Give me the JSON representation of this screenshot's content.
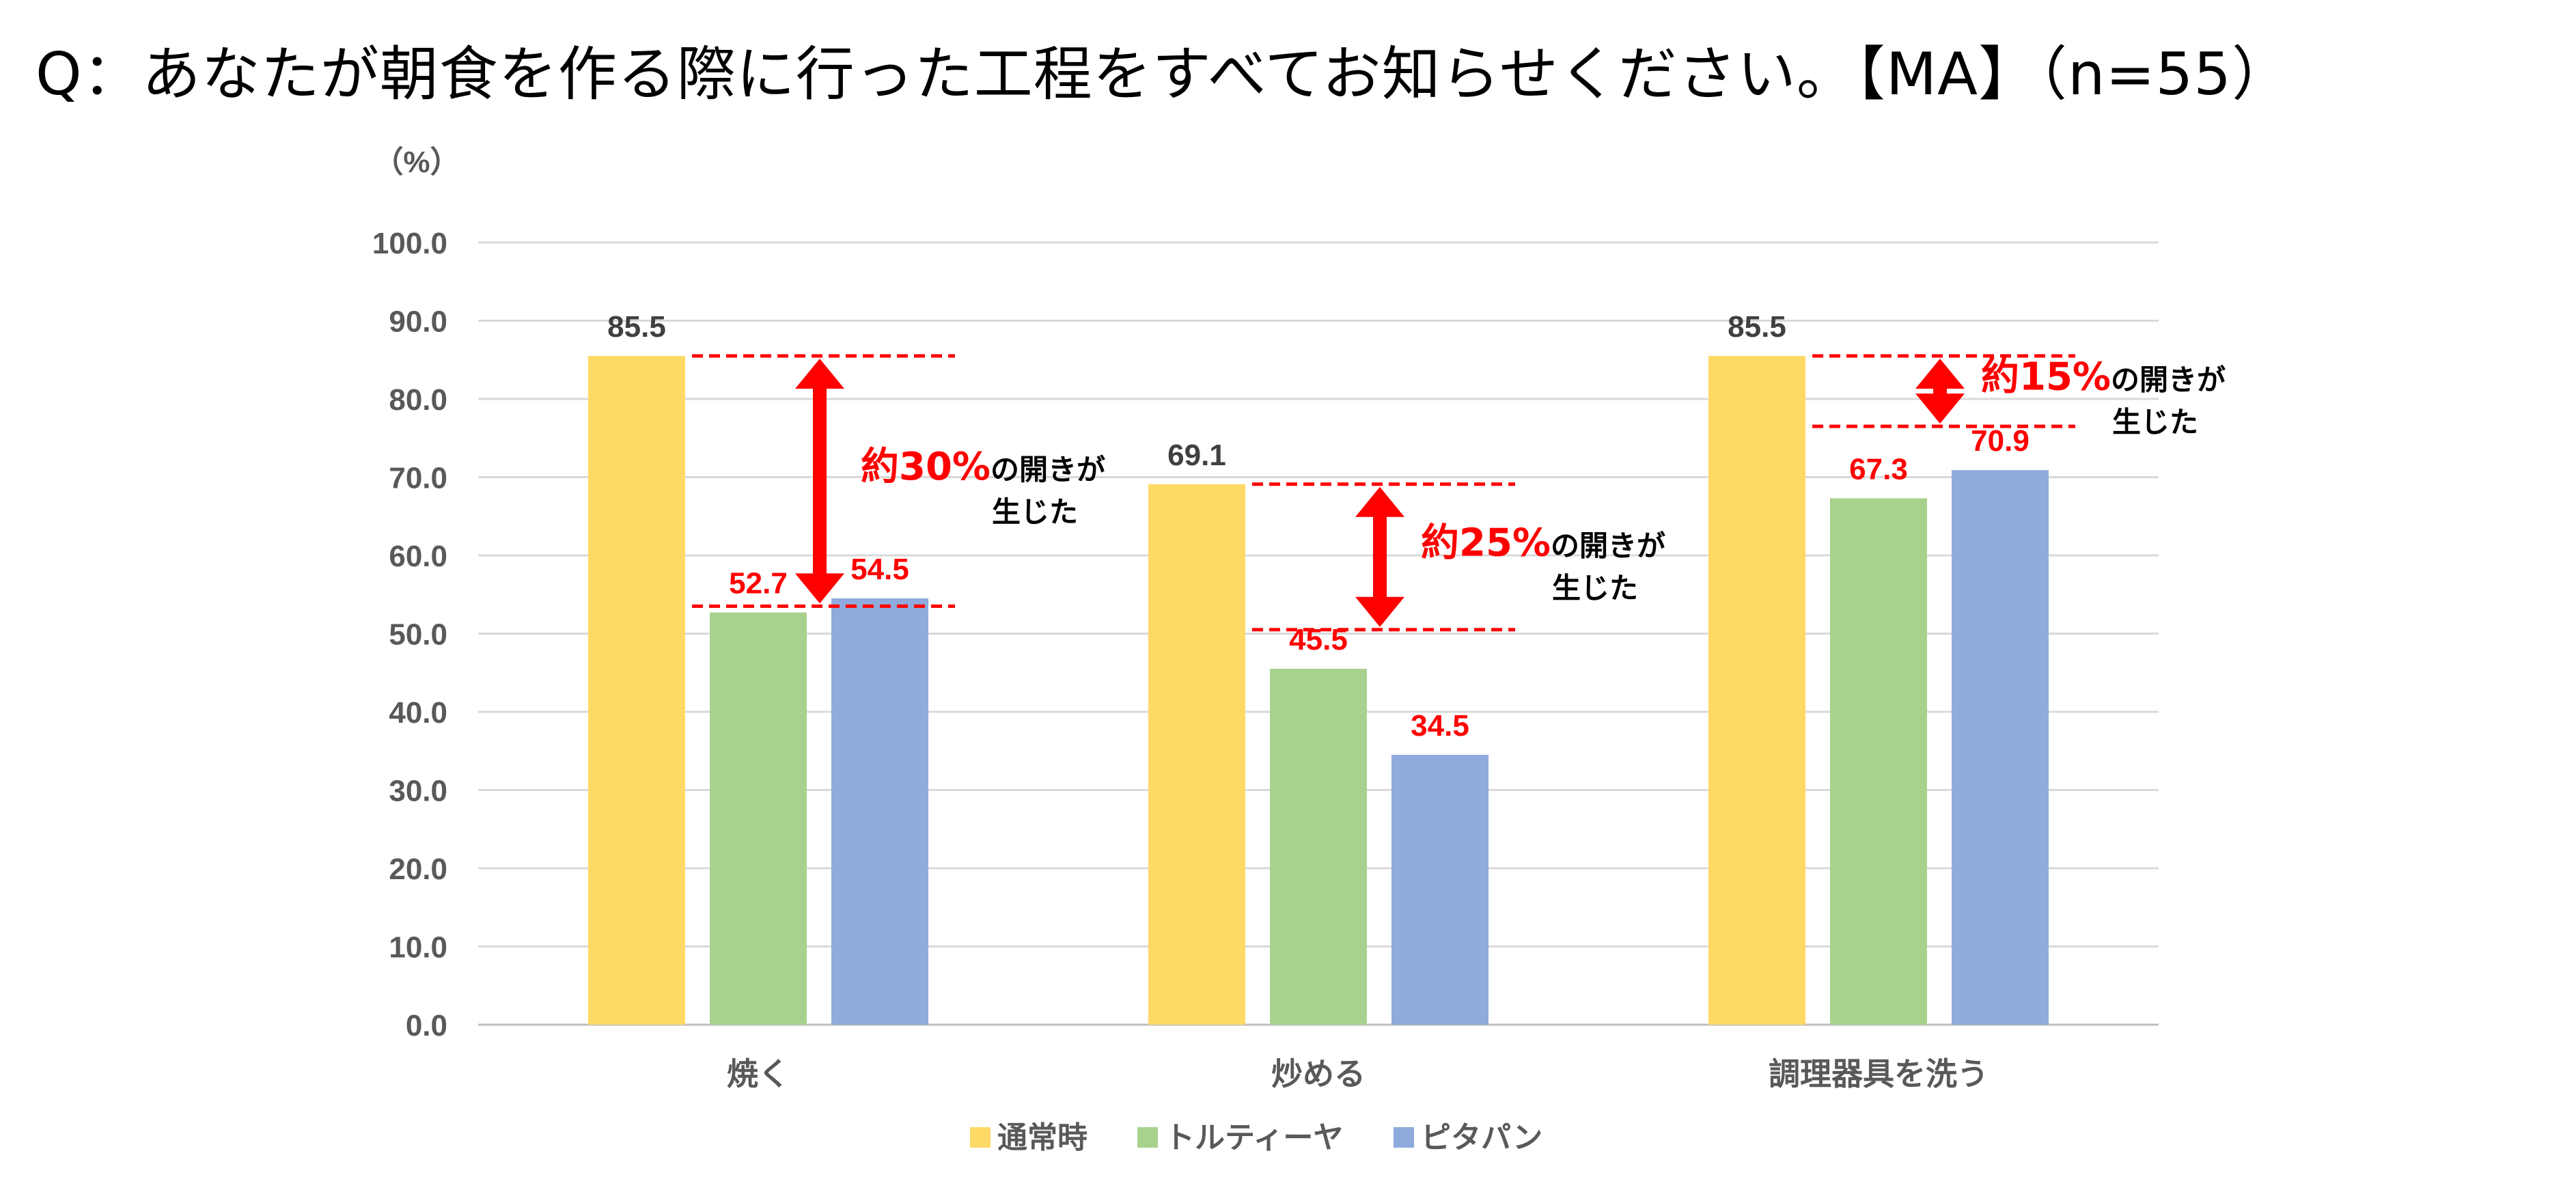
{
  "question": "Q：あなたが朝食を作る際に行った工程をすべてお知らせください。【MA】（n=55）",
  "chart_data": {
    "type": "bar",
    "unit_label": "（%）",
    "ylim": [
      0,
      100
    ],
    "yticks": [
      "0.0",
      "10.0",
      "20.0",
      "30.0",
      "40.0",
      "50.0",
      "60.0",
      "70.0",
      "80.0",
      "90.0",
      "100.0"
    ],
    "categories": [
      "焼く",
      "炒める",
      "調理器具を洗う"
    ],
    "series": [
      {
        "name": "通常時",
        "color": "#FFD966",
        "label_color": "#404040",
        "values": [
          85.5,
          69.1,
          85.5
        ],
        "labels": [
          "85.5",
          "69.1",
          "85.5"
        ]
      },
      {
        "name": "トルティーヤ",
        "color": "#A9D18E",
        "label_color": "#FF0000",
        "values": [
          52.7,
          45.5,
          67.3
        ],
        "labels": [
          "52.7",
          "45.5",
          "67.3"
        ]
      },
      {
        "name": "ピタパン",
        "color": "#8FAADC",
        "label_color": "#FF0000",
        "values": [
          54.5,
          34.5,
          70.9
        ],
        "labels": [
          "54.5",
          "34.5",
          "70.9"
        ]
      }
    ],
    "annotations": [
      {
        "category": 0,
        "top": 85.5,
        "bottom": 53.5,
        "main": "約30%",
        "suffix": "の開きが",
        "line2": "生じた"
      },
      {
        "category": 1,
        "top": 69.1,
        "bottom": 50.5,
        "main": "約25%",
        "suffix": "の開きが",
        "line2": "生じた"
      },
      {
        "category": 2,
        "top": 85.5,
        "bottom": 76.5,
        "main": "約15%",
        "suffix": "の開きが",
        "line2": "生じた"
      }
    ],
    "grid": true,
    "legend_position": "bottom",
    "accent_color": "#FF0000"
  }
}
